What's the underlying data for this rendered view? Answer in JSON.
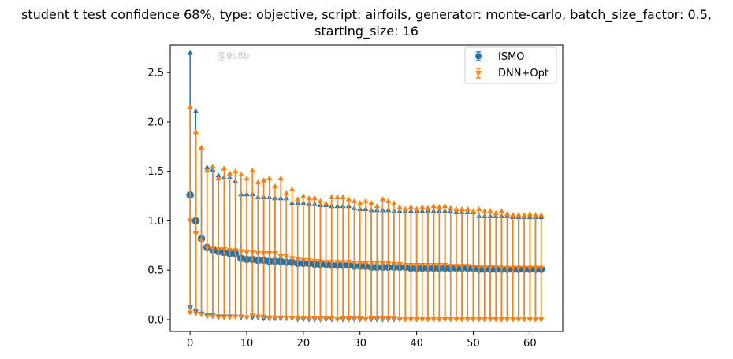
{
  "chart_data": {
    "type": "scatter",
    "title_line1": "student t test confidence 68%, type: objective, script: airfoils, generator: monte-carlo, batch_size_factor: 0.5,",
    "title_line2": "starting_size: 16",
    "watermark": "@9c8b",
    "xlabel": "",
    "ylabel": "",
    "xlim": [
      -3.5,
      65.8
    ],
    "ylim": [
      -0.12,
      2.78
    ],
    "xticks": [
      0,
      10,
      20,
      30,
      40,
      50,
      60
    ],
    "yticks": [
      0.0,
      0.5,
      1.0,
      1.5,
      2.0,
      2.5
    ],
    "ytick_labels": [
      "0.0",
      "0.5",
      "1.0",
      "1.5",
      "2.0",
      "2.5"
    ],
    "grid": false,
    "legend_position": "top-right",
    "series": [
      {
        "name": "ISMO",
        "color": "#1f77b4",
        "marker": "circle",
        "x": [
          0,
          1,
          2,
          3,
          4,
          5,
          6,
          7,
          8,
          9,
          10,
          11,
          12,
          13,
          14,
          15,
          16,
          17,
          18,
          19,
          20,
          21,
          22,
          23,
          24,
          25,
          26,
          27,
          28,
          29,
          30,
          31,
          32,
          33,
          34,
          35,
          36,
          37,
          38,
          39,
          40,
          41,
          42,
          43,
          44,
          45,
          46,
          47,
          48,
          49,
          50,
          51,
          52,
          53,
          54,
          55,
          56,
          57,
          58,
          59,
          60,
          61,
          62
        ],
        "y": [
          1.26,
          1.0,
          0.82,
          0.73,
          0.71,
          0.69,
          0.68,
          0.67,
          0.67,
          0.62,
          0.61,
          0.61,
          0.6,
          0.6,
          0.59,
          0.59,
          0.59,
          0.58,
          0.58,
          0.57,
          0.57,
          0.57,
          0.56,
          0.56,
          0.56,
          0.55,
          0.55,
          0.55,
          0.55,
          0.54,
          0.54,
          0.54,
          0.53,
          0.53,
          0.53,
          0.53,
          0.53,
          0.53,
          0.53,
          0.52,
          0.52,
          0.52,
          0.52,
          0.52,
          0.52,
          0.52,
          0.52,
          0.52,
          0.52,
          0.52,
          0.52,
          0.51,
          0.51,
          0.51,
          0.51,
          0.51,
          0.51,
          0.51,
          0.51,
          0.51,
          0.51,
          0.51,
          0.51
        ],
        "upper": [
          2.7,
          2.11,
          1.74,
          1.54,
          1.52,
          1.46,
          1.44,
          1.44,
          1.4,
          1.27,
          1.27,
          1.27,
          1.24,
          1.24,
          1.24,
          1.23,
          1.23,
          1.23,
          1.18,
          1.18,
          1.18,
          1.17,
          1.17,
          1.16,
          1.16,
          1.15,
          1.15,
          1.15,
          1.15,
          1.13,
          1.12,
          1.12,
          1.11,
          1.11,
          1.11,
          1.11,
          1.1,
          1.1,
          1.1,
          1.1,
          1.1,
          1.1,
          1.1,
          1.1,
          1.1,
          1.1,
          1.1,
          1.09,
          1.09,
          1.09,
          1.09,
          1.05,
          1.05,
          1.05,
          1.05,
          1.05,
          1.05,
          1.04,
          1.04,
          1.04,
          1.04,
          1.04,
          1.04
        ],
        "lower": [
          0.12,
          0.08,
          0.06,
          0.04,
          0.04,
          0.03,
          0.03,
          0.03,
          0.03,
          0.02,
          0.02,
          0.02,
          0.02,
          0.01,
          0.01,
          0.01,
          0.01,
          0.01,
          0.01,
          0.0,
          0.0,
          0.0,
          0.0,
          0.0,
          0.0,
          0.0,
          0.0,
          0.0,
          0.0,
          0.0,
          0.0,
          0.0,
          0.0,
          0.0,
          0.0,
          0.0,
          0.0,
          0.0,
          0.0,
          0.0,
          0.0,
          0.0,
          0.0,
          0.0,
          0.0,
          0.0,
          0.0,
          0.0,
          0.0,
          0.0,
          0.0,
          0.0,
          0.0,
          0.0,
          0.0,
          0.0,
          0.0,
          0.0,
          0.0,
          0.0,
          0.0,
          0.0,
          0.0
        ]
      },
      {
        "name": "DNN+Opt",
        "color": "#ff7f0e",
        "marker": "triangle",
        "x": [
          0,
          1,
          2,
          3,
          4,
          5,
          6,
          7,
          8,
          9,
          10,
          11,
          12,
          13,
          14,
          15,
          16,
          17,
          18,
          19,
          20,
          21,
          22,
          23,
          24,
          25,
          26,
          27,
          28,
          29,
          30,
          31,
          32,
          33,
          34,
          35,
          36,
          37,
          38,
          39,
          40,
          41,
          42,
          43,
          44,
          45,
          46,
          47,
          48,
          49,
          50,
          51,
          52,
          53,
          54,
          55,
          56,
          57,
          58,
          59,
          60,
          61,
          62
        ],
        "y": [
          1.0,
          0.87,
          0.8,
          0.73,
          0.72,
          0.71,
          0.71,
          0.7,
          0.7,
          0.69,
          0.68,
          0.68,
          0.67,
          0.67,
          0.67,
          0.67,
          0.64,
          0.64,
          0.62,
          0.61,
          0.6,
          0.6,
          0.59,
          0.59,
          0.58,
          0.58,
          0.58,
          0.58,
          0.58,
          0.57,
          0.57,
          0.57,
          0.57,
          0.57,
          0.57,
          0.57,
          0.56,
          0.56,
          0.55,
          0.55,
          0.55,
          0.55,
          0.55,
          0.55,
          0.55,
          0.55,
          0.54,
          0.54,
          0.54,
          0.54,
          0.53,
          0.53,
          0.53,
          0.53,
          0.53,
          0.52,
          0.52,
          0.52,
          0.52,
          0.52,
          0.52,
          0.52,
          0.52
        ],
        "upper": [
          2.15,
          1.9,
          1.74,
          1.51,
          1.55,
          1.43,
          1.53,
          1.48,
          1.5,
          1.47,
          1.43,
          1.51,
          1.39,
          1.41,
          1.43,
          1.35,
          1.43,
          1.28,
          1.32,
          1.22,
          1.25,
          1.23,
          1.23,
          1.2,
          1.18,
          1.24,
          1.24,
          1.24,
          1.22,
          1.2,
          1.18,
          1.2,
          1.18,
          1.15,
          1.22,
          1.2,
          1.18,
          1.14,
          1.12,
          1.14,
          1.12,
          1.14,
          1.13,
          1.15,
          1.14,
          1.15,
          1.13,
          1.12,
          1.12,
          1.12,
          1.1,
          1.12,
          1.1,
          1.1,
          1.08,
          1.1,
          1.07,
          1.06,
          1.06,
          1.06,
          1.07,
          1.06,
          1.06
        ],
        "lower": [
          0.07,
          0.06,
          0.05,
          0.03,
          0.03,
          0.02,
          0.02,
          0.02,
          0.03,
          0.03,
          0.02,
          0.04,
          0.03,
          0.03,
          0.02,
          0.02,
          0.02,
          0.01,
          0.01,
          0.01,
          0.01,
          0.01,
          0.01,
          0.01,
          0.01,
          0.01,
          0.0,
          0.01,
          0.01,
          0.01,
          0.01,
          0.0,
          0.01,
          0.01,
          0.01,
          0.01,
          0.01,
          0.0,
          0.0,
          0.0,
          0.0,
          0.0,
          0.0,
          0.0,
          0.0,
          0.0,
          0.0,
          0.0,
          0.0,
          0.0,
          0.0,
          0.0,
          0.0,
          0.0,
          0.0,
          0.0,
          0.0,
          0.0,
          0.0,
          0.0,
          0.0,
          0.0,
          0.0
        ]
      }
    ]
  }
}
